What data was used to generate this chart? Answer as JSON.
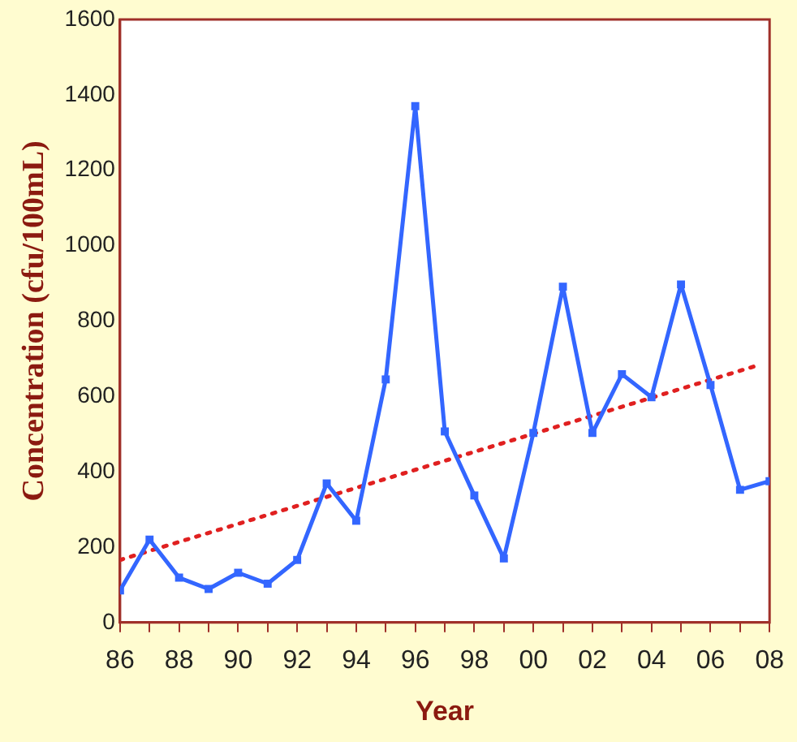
{
  "chart_data": {
    "type": "line",
    "xlabel": "Year",
    "ylabel": "Concentration (cfu/100mL)",
    "xlim": [
      1986,
      2008
    ],
    "ylim": [
      0,
      1600
    ],
    "xticks": [
      {
        "value": 1986,
        "label": "86"
      },
      {
        "value": 1987,
        "label": null
      },
      {
        "value": 1988,
        "label": "88"
      },
      {
        "value": 1989,
        "label": null
      },
      {
        "value": 1990,
        "label": "90"
      },
      {
        "value": 1991,
        "label": null
      },
      {
        "value": 1992,
        "label": "92"
      },
      {
        "value": 1993,
        "label": null
      },
      {
        "value": 1994,
        "label": "94"
      },
      {
        "value": 1995,
        "label": null
      },
      {
        "value": 1996,
        "label": "96"
      },
      {
        "value": 1997,
        "label": null
      },
      {
        "value": 1998,
        "label": "98"
      },
      {
        "value": 1999,
        "label": null
      },
      {
        "value": 2000,
        "label": "00"
      },
      {
        "value": 2001,
        "label": null
      },
      {
        "value": 2002,
        "label": "02"
      },
      {
        "value": 2003,
        "label": null
      },
      {
        "value": 2004,
        "label": "04"
      },
      {
        "value": 2005,
        "label": null
      },
      {
        "value": 2006,
        "label": "06"
      },
      {
        "value": 2007,
        "label": null
      },
      {
        "value": 2008,
        "label": "08"
      }
    ],
    "yticks": [
      0,
      200,
      400,
      600,
      800,
      1000,
      1200,
      1400,
      1600
    ],
    "grid": false,
    "legend": false,
    "series": [
      {
        "type": "line",
        "color": "#3366ff",
        "marker": "square",
        "line_style": "solid",
        "x": [
          1986,
          1987,
          1988,
          1989,
          1990,
          1991,
          1992,
          1993,
          1994,
          1995,
          1996,
          1997,
          1998,
          1999,
          2000,
          2001,
          2002,
          2003,
          2004,
          2005,
          2006,
          2007,
          2008
        ],
        "values": [
          85,
          220,
          119,
          89,
          132,
          103,
          166,
          369,
          270,
          645,
          1370,
          507,
          337,
          170,
          503,
          891,
          503,
          659,
          598,
          897,
          630,
          352,
          375
        ]
      },
      {
        "type": "line",
        "color": "#e02020",
        "marker": "none",
        "line_style": "dotted",
        "x": [
          1986,
          2007.5
        ],
        "values": [
          166,
          680
        ]
      }
    ]
  }
}
